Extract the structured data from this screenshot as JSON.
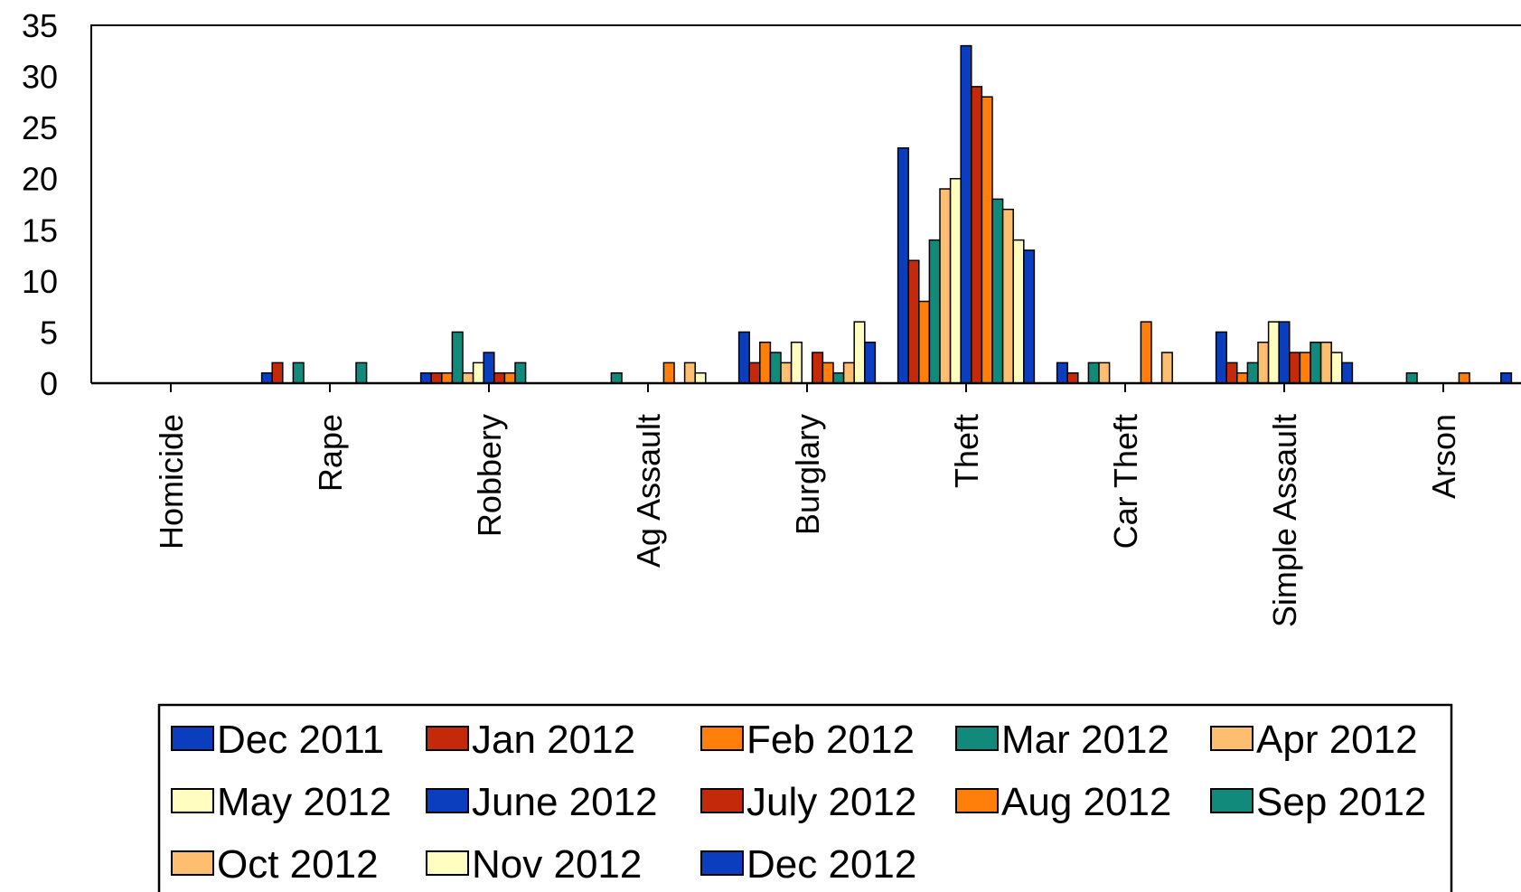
{
  "chart_data": {
    "type": "bar",
    "title": "",
    "xlabel": "",
    "ylabel": "",
    "ylim": [
      0,
      35
    ],
    "yticks": [
      "0",
      "5",
      "10",
      "15",
      "20",
      "25",
      "30",
      "35"
    ],
    "grid": false,
    "legend_position": "bottom",
    "categories": [
      "Homicide",
      "Rape",
      "Robbery",
      "Ag Assault",
      "Burglary",
      "Theft",
      "Car Theft",
      "Simple Assault",
      "Arson"
    ],
    "series": [
      {
        "name": "Dec 2011",
        "color": "#0b3ebf",
        "values": [
          0,
          1,
          1,
          0,
          5,
          23,
          2,
          5,
          0
        ]
      },
      {
        "name": "Jan 2012",
        "color": "#c42a0a",
        "values": [
          0,
          2,
          1,
          0,
          2,
          12,
          1,
          2,
          0
        ]
      },
      {
        "name": "Feb 2012",
        "color": "#ff7f0a",
        "values": [
          0,
          0,
          1,
          0,
          4,
          8,
          0,
          1,
          0
        ]
      },
      {
        "name": "Mar 2012",
        "color": "#118a7c",
        "values": [
          0,
          2,
          5,
          1,
          3,
          14,
          2,
          2,
          1
        ]
      },
      {
        "name": "Apr 2012",
        "color": "#fdbe6f",
        "values": [
          0,
          0,
          1,
          0,
          2,
          19,
          2,
          4,
          0
        ]
      },
      {
        "name": "May 2012",
        "color": "#fffdc0",
        "values": [
          0,
          0,
          2,
          0,
          4,
          20,
          0,
          6,
          0
        ]
      },
      {
        "name": "June 2012",
        "color": "#0b3ebf",
        "values": [
          0,
          0,
          3,
          0,
          0,
          33,
          0,
          6,
          0
        ]
      },
      {
        "name": "July 2012",
        "color": "#c42a0a",
        "values": [
          0,
          0,
          1,
          0,
          3,
          29,
          0,
          3,
          0
        ]
      },
      {
        "name": "Aug 2012",
        "color": "#ff7f0a",
        "values": [
          0,
          0,
          1,
          2,
          2,
          28,
          6,
          3,
          1
        ]
      },
      {
        "name": "Sep 2012",
        "color": "#118a7c",
        "values": [
          0,
          2,
          2,
          0,
          1,
          18,
          0,
          4,
          0
        ]
      },
      {
        "name": "Oct 2012",
        "color": "#fdbe6f",
        "values": [
          0,
          0,
          0,
          2,
          2,
          17,
          3,
          4,
          0
        ]
      },
      {
        "name": "Nov 2012",
        "color": "#fffdc0",
        "values": [
          0,
          0,
          0,
          1,
          6,
          14,
          0,
          3,
          0
        ]
      },
      {
        "name": "Dec 2012",
        "color": "#0b3ebf",
        "values": [
          0,
          0,
          0,
          0,
          4,
          13,
          0,
          2,
          1
        ]
      }
    ]
  }
}
